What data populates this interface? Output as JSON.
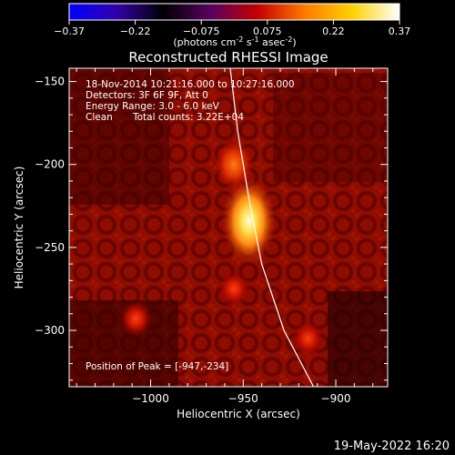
{
  "colorbar": {
    "ticks": [
      "-0.37",
      "-0.22",
      "-0.075",
      "0.075",
      "0.22",
      "0.37"
    ],
    "units_text": "(photons cm",
    "units_sup1": "-2",
    "units_mid1": " s",
    "units_sup2": "-1",
    "units_mid2": " asec",
    "units_sup3": "-2",
    "units_end": ")",
    "colors": [
      "#0000ff",
      "#3300aa",
      "#000000",
      "#5a0060",
      "#c40000",
      "#ff7a00",
      "#ffd200",
      "#ffffff"
    ]
  },
  "title": "Reconstructed RHESSI Image",
  "info": {
    "line1": "18-Nov-2014 10:21:16.000 to 10:27:16.000",
    "line2": "Detectors: 3F 6F 9F, Att 0",
    "line3": "Energy Range: 3.0 - 6.0 keV",
    "line4_a": "Clean",
    "line4_b": "Total counts: 3.22E+04"
  },
  "peak_text": "Position of Peak = [-947,-234]",
  "footer_date": "19-May-2022 16:20",
  "chart_data": {
    "type": "heatmap",
    "title": "Reconstructed RHESSI Image",
    "xlabel": "Heliocentric X (arcsec)",
    "ylabel": "Heliocentric Y (arcsec)",
    "xlim": [
      -1044,
      -872
    ],
    "ylim": [
      -334,
      -142
    ],
    "xticks": [
      -1000,
      -950,
      -900
    ],
    "yticks": [
      -150,
      -200,
      -250,
      -300
    ],
    "xtick_labels": [
      "−1000",
      "−950",
      "−900"
    ],
    "ytick_labels": [
      "−150",
      "−200",
      "−250",
      "−300"
    ],
    "colorbar_range": [
      -0.37,
      0.37
    ],
    "peak": {
      "x": -947,
      "y": -234
    },
    "limb_curve": [
      [
        -957,
        -142
      ],
      [
        -953,
        -180
      ],
      [
        -947,
        -220
      ],
      [
        -940,
        -260
      ],
      [
        -928,
        -300
      ],
      [
        -912,
        -334
      ]
    ],
    "sources": [
      {
        "x": -947,
        "y": -234,
        "intensity": 1.0
      },
      {
        "x": -955,
        "y": -200,
        "intensity": 0.5
      },
      {
        "x": -955,
        "y": -275,
        "intensity": 0.4
      },
      {
        "x": -1008,
        "y": -293,
        "intensity": 0.35
      },
      {
        "x": -915,
        "y": -305,
        "intensity": 0.3
      }
    ]
  }
}
